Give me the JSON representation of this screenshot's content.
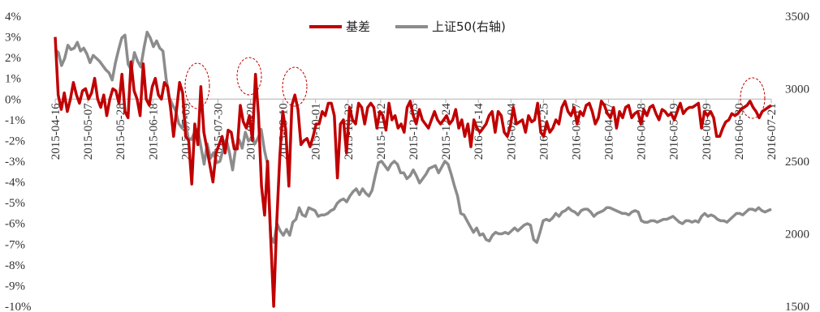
{
  "chart_data": {
    "type": "line",
    "title": "",
    "xlabel": "",
    "ylabel": "",
    "x_tick_labels": [
      "2015-04-16",
      "2015-05-07",
      "2015-05-28",
      "2015-06-18",
      "2015-07-09",
      "2015-07-30",
      "2015-08-20",
      "2015-09-10",
      "2015-10-01",
      "2015-10-22",
      "2015-11-12",
      "2015-12-03",
      "2015-12-24",
      "2016-01-14",
      "2016-02-04",
      "2016-02-25",
      "2016-03-17",
      "2016-04-07",
      "2016-04-28",
      "2016-05-19",
      "2016-06-09",
      "2016-06-30",
      "2016-07-21"
    ],
    "left_axis": {
      "ylim": [
        -10,
        4
      ],
      "ticks": [
        4,
        3,
        2,
        1,
        0,
        -1,
        -2,
        -3,
        -4,
        -5,
        -6,
        -7,
        -8,
        -9,
        -10
      ],
      "tick_labels": [
        "4%",
        "3%",
        "2%",
        "1%",
        "0%",
        "-1%",
        "-2%",
        "-3%",
        "-4%",
        "-5%",
        "-6%",
        "-7%",
        "-8%",
        "-9%",
        "-10%"
      ]
    },
    "right_axis": {
      "ylim": [
        1500,
        3500
      ],
      "ticks": [
        3500,
        3000,
        2500,
        2000,
        1500
      ],
      "tick_labels": [
        "3500",
        "3000",
        "2500",
        "2000",
        "1500"
      ]
    },
    "legend": {
      "placement": "top-center"
    },
    "grid": false,
    "series": [
      {
        "name": "基差",
        "axis": "left",
        "color": "#c00000",
        "values": [
          3.0,
          0.2,
          -0.5,
          0.3,
          -0.6,
          0.0,
          0.8,
          0.2,
          -0.2,
          0.4,
          0.5,
          0.0,
          0.3,
          1.0,
          0.0,
          -0.4,
          0.2,
          -0.8,
          0.0,
          0.5,
          0.4,
          -0.2,
          1.2,
          -0.6,
          -0.9,
          1.8,
          0.4,
          0.0,
          -0.8,
          1.7,
          0.0,
          -0.3,
          0.6,
          1.0,
          0.2,
          0.0,
          0.8,
          0.6,
          -0.4,
          -1.8,
          -0.5,
          0.8,
          0.3,
          -1.8,
          -2.0,
          -4.1,
          -1.2,
          -2.2,
          0.6,
          -1.6,
          -2.4,
          -3.2,
          -4.0,
          -2.6,
          -2.2,
          -1.8,
          -2.6,
          -1.5,
          -1.6,
          -2.4,
          -2.4,
          -0.3,
          -1.1,
          -1.4,
          -0.8,
          -2.0,
          1.2,
          -0.8,
          -4.2,
          -5.6,
          -3.0,
          -6.6,
          -10.0,
          -6.0,
          -2.8,
          -0.6,
          -1.5,
          -4.2,
          -0.3,
          0.2,
          -0.5,
          -2.2,
          -2.0,
          -1.9,
          -2.3,
          -1.8,
          -1.2,
          -1.2,
          -0.6,
          -0.8,
          -0.2,
          -0.2,
          -0.8,
          -3.8,
          -1.2,
          -1.0,
          -2.6,
          -0.4,
          -1.0,
          -1.2,
          -0.2,
          -0.4,
          -1.2,
          -0.4,
          -0.2,
          -0.4,
          -1.4,
          -0.6,
          -0.8,
          -1.5,
          -0.2,
          -1.0,
          -0.8,
          -1.4,
          -1.2,
          -1.6,
          -0.4,
          -0.1,
          -0.8,
          -1.2,
          -0.5,
          -1.0,
          -1.2,
          -1.4,
          -1.0,
          -0.6,
          -1.0,
          -1.2,
          -1.0,
          -0.8,
          -1.2,
          -1.0,
          -0.5,
          -1.4,
          -1.0,
          -1.8,
          -1.2,
          -2.3,
          -1.0,
          -1.4,
          -1.6,
          -1.4,
          -1.2,
          -0.8,
          -0.6,
          -1.6,
          -0.6,
          -0.8,
          -1.6,
          -1.8,
          -1.3,
          -0.4,
          -1.2,
          -1.1,
          -1.0,
          -1.6,
          -0.8,
          -1.1,
          -1.0,
          -0.2,
          -1.6,
          -1.8,
          -1.1,
          -1.6,
          -1.4,
          -1.0,
          -1.2,
          -0.4,
          -0.1,
          -0.6,
          -0.8,
          -0.4,
          -1.2,
          -0.6,
          -0.8,
          -0.3,
          -0.2,
          -0.6,
          -1.2,
          -0.9,
          -0.1,
          -0.3,
          -0.7,
          -0.9,
          -0.4,
          -1.4,
          -0.6,
          -0.9,
          -0.4,
          -0.3,
          -0.9,
          -0.7,
          -0.6,
          -1.2,
          -0.5,
          -0.8,
          -0.4,
          -0.3,
          -0.7,
          -1.0,
          -0.5,
          -0.6,
          -0.8,
          -0.7,
          -1.0,
          -0.6,
          -0.2,
          -0.7,
          -0.5,
          -0.4,
          -0.4,
          -0.3,
          -0.2,
          -1.4,
          -0.6,
          -0.8,
          -0.6,
          -0.9,
          -1.8,
          -1.8,
          -1.4,
          -1.1,
          -1.0,
          -0.7,
          -0.8,
          -0.7,
          -0.5,
          -0.4,
          -0.3,
          -0.1,
          -0.4,
          -0.6,
          -0.9,
          -0.6,
          -0.5,
          -0.4,
          -0.3
        ]
      },
      {
        "name": "上证50(右轴)",
        "axis": "right",
        "color": "#8c8c8c",
        "values": [
          3270,
          3250,
          3160,
          3210,
          3300,
          3270,
          3280,
          3320,
          3260,
          3280,
          3240,
          3180,
          3230,
          3210,
          3190,
          3160,
          3130,
          3110,
          3060,
          3180,
          3270,
          3350,
          3370,
          3170,
          3130,
          3250,
          3190,
          3150,
          3280,
          3390,
          3350,
          3290,
          3330,
          3280,
          3260,
          3070,
          2940,
          2890,
          2850,
          2760,
          2730,
          2780,
          2660,
          2650,
          2700,
          2720,
          2600,
          2480,
          2620,
          2520,
          2560,
          2490,
          2500,
          2580,
          2650,
          2560,
          2440,
          2600,
          2650,
          2590,
          2700,
          2640,
          2660,
          2620,
          2660,
          2720,
          2580,
          2480,
          1980,
          1940,
          2070,
          2020,
          1990,
          2030,
          1990,
          2080,
          2100,
          2180,
          2130,
          2120,
          2180,
          2170,
          2160,
          2120,
          2130,
          2130,
          2140,
          2160,
          2170,
          2210,
          2230,
          2240,
          2220,
          2260,
          2290,
          2310,
          2270,
          2310,
          2280,
          2260,
          2300,
          2400,
          2490,
          2500,
          2470,
          2440,
          2480,
          2500,
          2480,
          2420,
          2420,
          2380,
          2400,
          2440,
          2400,
          2350,
          2380,
          2410,
          2450,
          2460,
          2470,
          2420,
          2460,
          2500,
          2480,
          2410,
          2330,
          2260,
          2140,
          2130,
          2090,
          2050,
          2010,
          2040,
          1990,
          2000,
          1960,
          1950,
          1990,
          2010,
          2000,
          2000,
          2010,
          2000,
          2020,
          2040,
          2020,
          2040,
          2060,
          2070,
          2060,
          1960,
          1940,
          2010,
          2090,
          2100,
          2090,
          2110,
          2140,
          2120,
          2150,
          2160,
          2180,
          2160,
          2150,
          2130,
          2160,
          2170,
          2170,
          2150,
          2120,
          2140,
          2150,
          2160,
          2180,
          2180,
          2170,
          2160,
          2150,
          2140,
          2140,
          2130,
          2150,
          2160,
          2150,
          2090,
          2080,
          2080,
          2090,
          2090,
          2080,
          2090,
          2100,
          2100,
          2110,
          2120,
          2100,
          2080,
          2070,
          2090,
          2090,
          2080,
          2090,
          2080,
          2120,
          2140,
          2120,
          2130,
          2120,
          2100,
          2090,
          2090,
          2080,
          2100,
          2120,
          2140,
          2140,
          2130,
          2150,
          2170,
          2170,
          2160,
          2180,
          2160,
          2150,
          2160,
          2170
        ]
      }
    ],
    "annotations": [
      "dashed-ellipse-1",
      "dashed-ellipse-2",
      "dashed-ellipse-3",
      "dashed-ellipse-4"
    ]
  }
}
